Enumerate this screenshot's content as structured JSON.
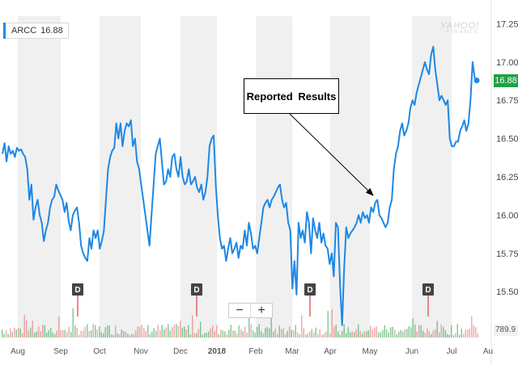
{
  "ticker": {
    "symbol": "ARCC",
    "price": "16.88",
    "accent": "#1e88e5"
  },
  "watermark": {
    "main": "YAHOO!",
    "sub": "FINANCE"
  },
  "last_price_label": "16.88",
  "annotation": {
    "text": "Reported Results"
  },
  "zoom": {
    "minus": "−",
    "plus": "+"
  },
  "volume_label": "789.9",
  "colors": {
    "line": "#1e88e5",
    "up": "#21a047",
    "down": "#e06666",
    "band": "#f0f0f0",
    "price_tag": "#21a047"
  },
  "chart_data": {
    "type": "line",
    "title": "",
    "xlabel": "",
    "ylabel": "",
    "ylim": [
      15.2,
      17.3
    ],
    "x_ticks": [
      "Aug",
      "Sep",
      "Oct",
      "Nov",
      "Dec",
      "2018",
      "Feb",
      "Mar",
      "Apr",
      "May",
      "Jun",
      "Jul",
      "Au"
    ],
    "y_ticks": [
      "15.25",
      "15.50",
      "15.75",
      "16.00",
      "16.25",
      "16.50",
      "16.75",
      "17.00",
      "17.25"
    ],
    "grid": "alternating monthly bands",
    "dividend_markers": [
      "D",
      "D",
      "D",
      "D"
    ],
    "series": [
      {
        "values": [
          16.4,
          16.47,
          16.35,
          16.45,
          16.4,
          16.42,
          16.38,
          16.44,
          16.42,
          16.43,
          16.4,
          16.38,
          16.3,
          16.1,
          16.2,
          15.97,
          16.05,
          16.1,
          16.0,
          15.95,
          15.83,
          15.9,
          15.95,
          16.05,
          16.1,
          16.12,
          16.2,
          16.16,
          16.13,
          16.1,
          16.02,
          16.08,
          15.96,
          15.9,
          16.0,
          16.03,
          16.05,
          15.95,
          15.8,
          15.75,
          15.72,
          15.7,
          15.85,
          15.78,
          15.9,
          15.85,
          15.9,
          15.78,
          15.83,
          15.9,
          16.1,
          16.3,
          16.38,
          16.42,
          16.44,
          16.6,
          16.5,
          16.6,
          16.45,
          16.55,
          16.6,
          16.58,
          16.62,
          16.45,
          16.5,
          16.35,
          16.3,
          16.2,
          16.1,
          16.0,
          15.9,
          15.8,
          16.0,
          16.2,
          16.4,
          16.45,
          16.5,
          16.35,
          16.2,
          16.22,
          16.3,
          16.25,
          16.38,
          16.4,
          16.3,
          16.25,
          16.38,
          16.25,
          16.2,
          16.22,
          16.3,
          16.2,
          16.22,
          16.25,
          16.18,
          16.15,
          16.2,
          16.1,
          16.15,
          16.25,
          16.45,
          16.5,
          16.52,
          16.2,
          16.0,
          15.85,
          15.78,
          15.8,
          15.7,
          15.78,
          15.85,
          15.75,
          15.78,
          15.82,
          15.72,
          15.8,
          15.78,
          15.9,
          15.8,
          15.95,
          15.88,
          15.78,
          15.8,
          15.75,
          15.85,
          15.95,
          16.05,
          16.08,
          16.1,
          16.05,
          16.1,
          16.12,
          16.15,
          16.18,
          16.2,
          16.1,
          16.05,
          16.08,
          15.95,
          15.9,
          15.52,
          15.7,
          15.48,
          15.95,
          15.85,
          15.9,
          15.82,
          16.02,
          15.95,
          15.75,
          15.98,
          15.9,
          15.85,
          15.95,
          15.82,
          15.88,
          15.8,
          15.78,
          15.68,
          15.75,
          15.6,
          15.95,
          15.92,
          15.55,
          15.28,
          15.65,
          15.92,
          15.85,
          15.88,
          15.9,
          15.92,
          15.95,
          16.0,
          15.95,
          16.02,
          15.98,
          16.0,
          15.95,
          16.05,
          16.02,
          16.08,
          16.1,
          16.0,
          15.98,
          15.95,
          15.92,
          15.95,
          16.05,
          16.1,
          16.3,
          16.4,
          16.45,
          16.55,
          16.6,
          16.52,
          16.55,
          16.6,
          16.7,
          16.75,
          16.72,
          16.8,
          16.85,
          16.9,
          16.95,
          17.0,
          16.95,
          16.92,
          17.05,
          17.1,
          16.95,
          16.85,
          16.75,
          16.78,
          16.75,
          16.72,
          16.75,
          16.5,
          16.45,
          16.45,
          16.48,
          16.48,
          16.55,
          16.58,
          16.62,
          16.55,
          16.6,
          16.75,
          17.0,
          16.9,
          16.88
        ]
      }
    ]
  }
}
